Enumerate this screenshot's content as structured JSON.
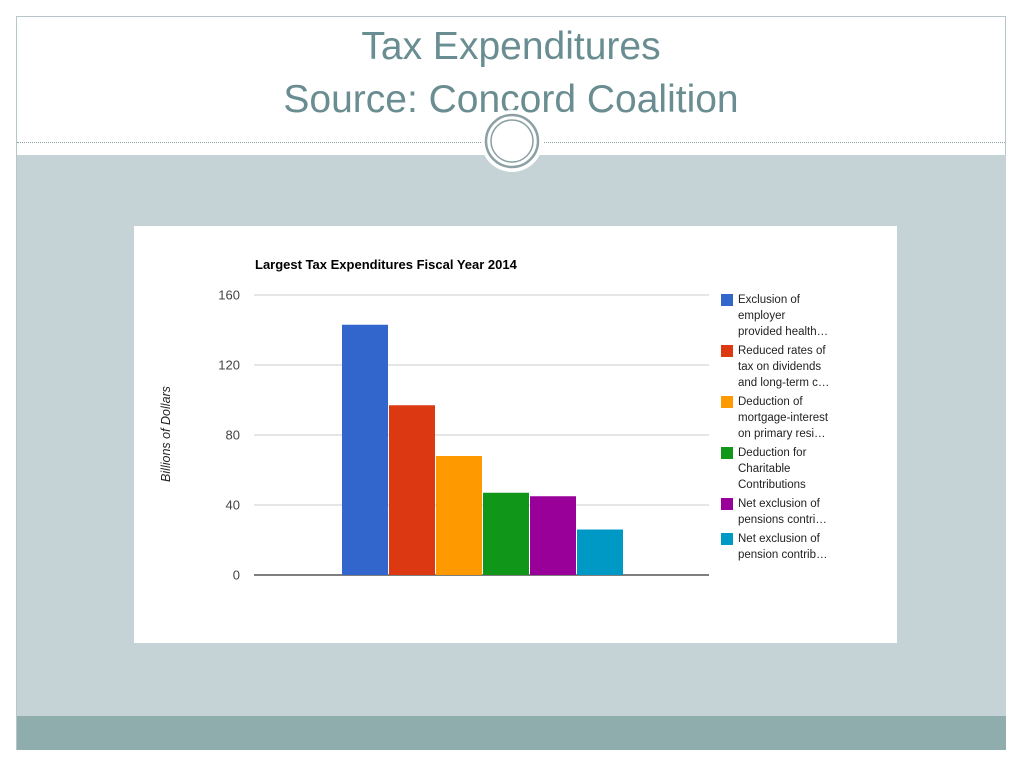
{
  "slide": {
    "title_line_1": "Tax Expenditures",
    "title_line_2": "Source: Concord Coalition"
  },
  "colors": {
    "title": "#6a8d91",
    "panel": "#c5d3d7",
    "footer": "#8fadad"
  },
  "chart_data": {
    "type": "bar",
    "title": "Largest Tax Expenditures Fiscal Year 2014",
    "ylabel": "Billions of Dollars",
    "xlabel": "",
    "ylim": [
      0,
      160
    ],
    "yticks": [
      "0",
      "40",
      "80",
      "120",
      "160"
    ],
    "grid": true,
    "legend_position": "right",
    "series": [
      {
        "name": "Exclusion of employer provided health…",
        "legend_text": "Exclusion of\nemployer\nprovided health…",
        "value": 143,
        "color": "#3366cc"
      },
      {
        "name": "Reduced rates of tax on dividends and long-term c…",
        "legend_text": "Reduced rates of\ntax on dividends\nand long-term c…",
        "value": 97,
        "color": "#dc3912"
      },
      {
        "name": "Deduction of mortgage-interest on primary resi…",
        "legend_text": "Deduction of\nmortgage-interest\non primary resi…",
        "value": 68,
        "color": "#ff9900"
      },
      {
        "name": "Deduction for Charitable Contributions",
        "legend_text": "Deduction for\nCharitable\nContributions",
        "value": 47,
        "color": "#109618"
      },
      {
        "name": "Net exclusion of pensions contri…",
        "legend_text": "Net exclusion of\npensions contri…",
        "value": 45,
        "color": "#990099"
      },
      {
        "name": "Net exclusion of pension contrib…",
        "legend_text": "Net exclusion of\npension contrib…",
        "value": 26,
        "color": "#0099c6"
      }
    ]
  }
}
